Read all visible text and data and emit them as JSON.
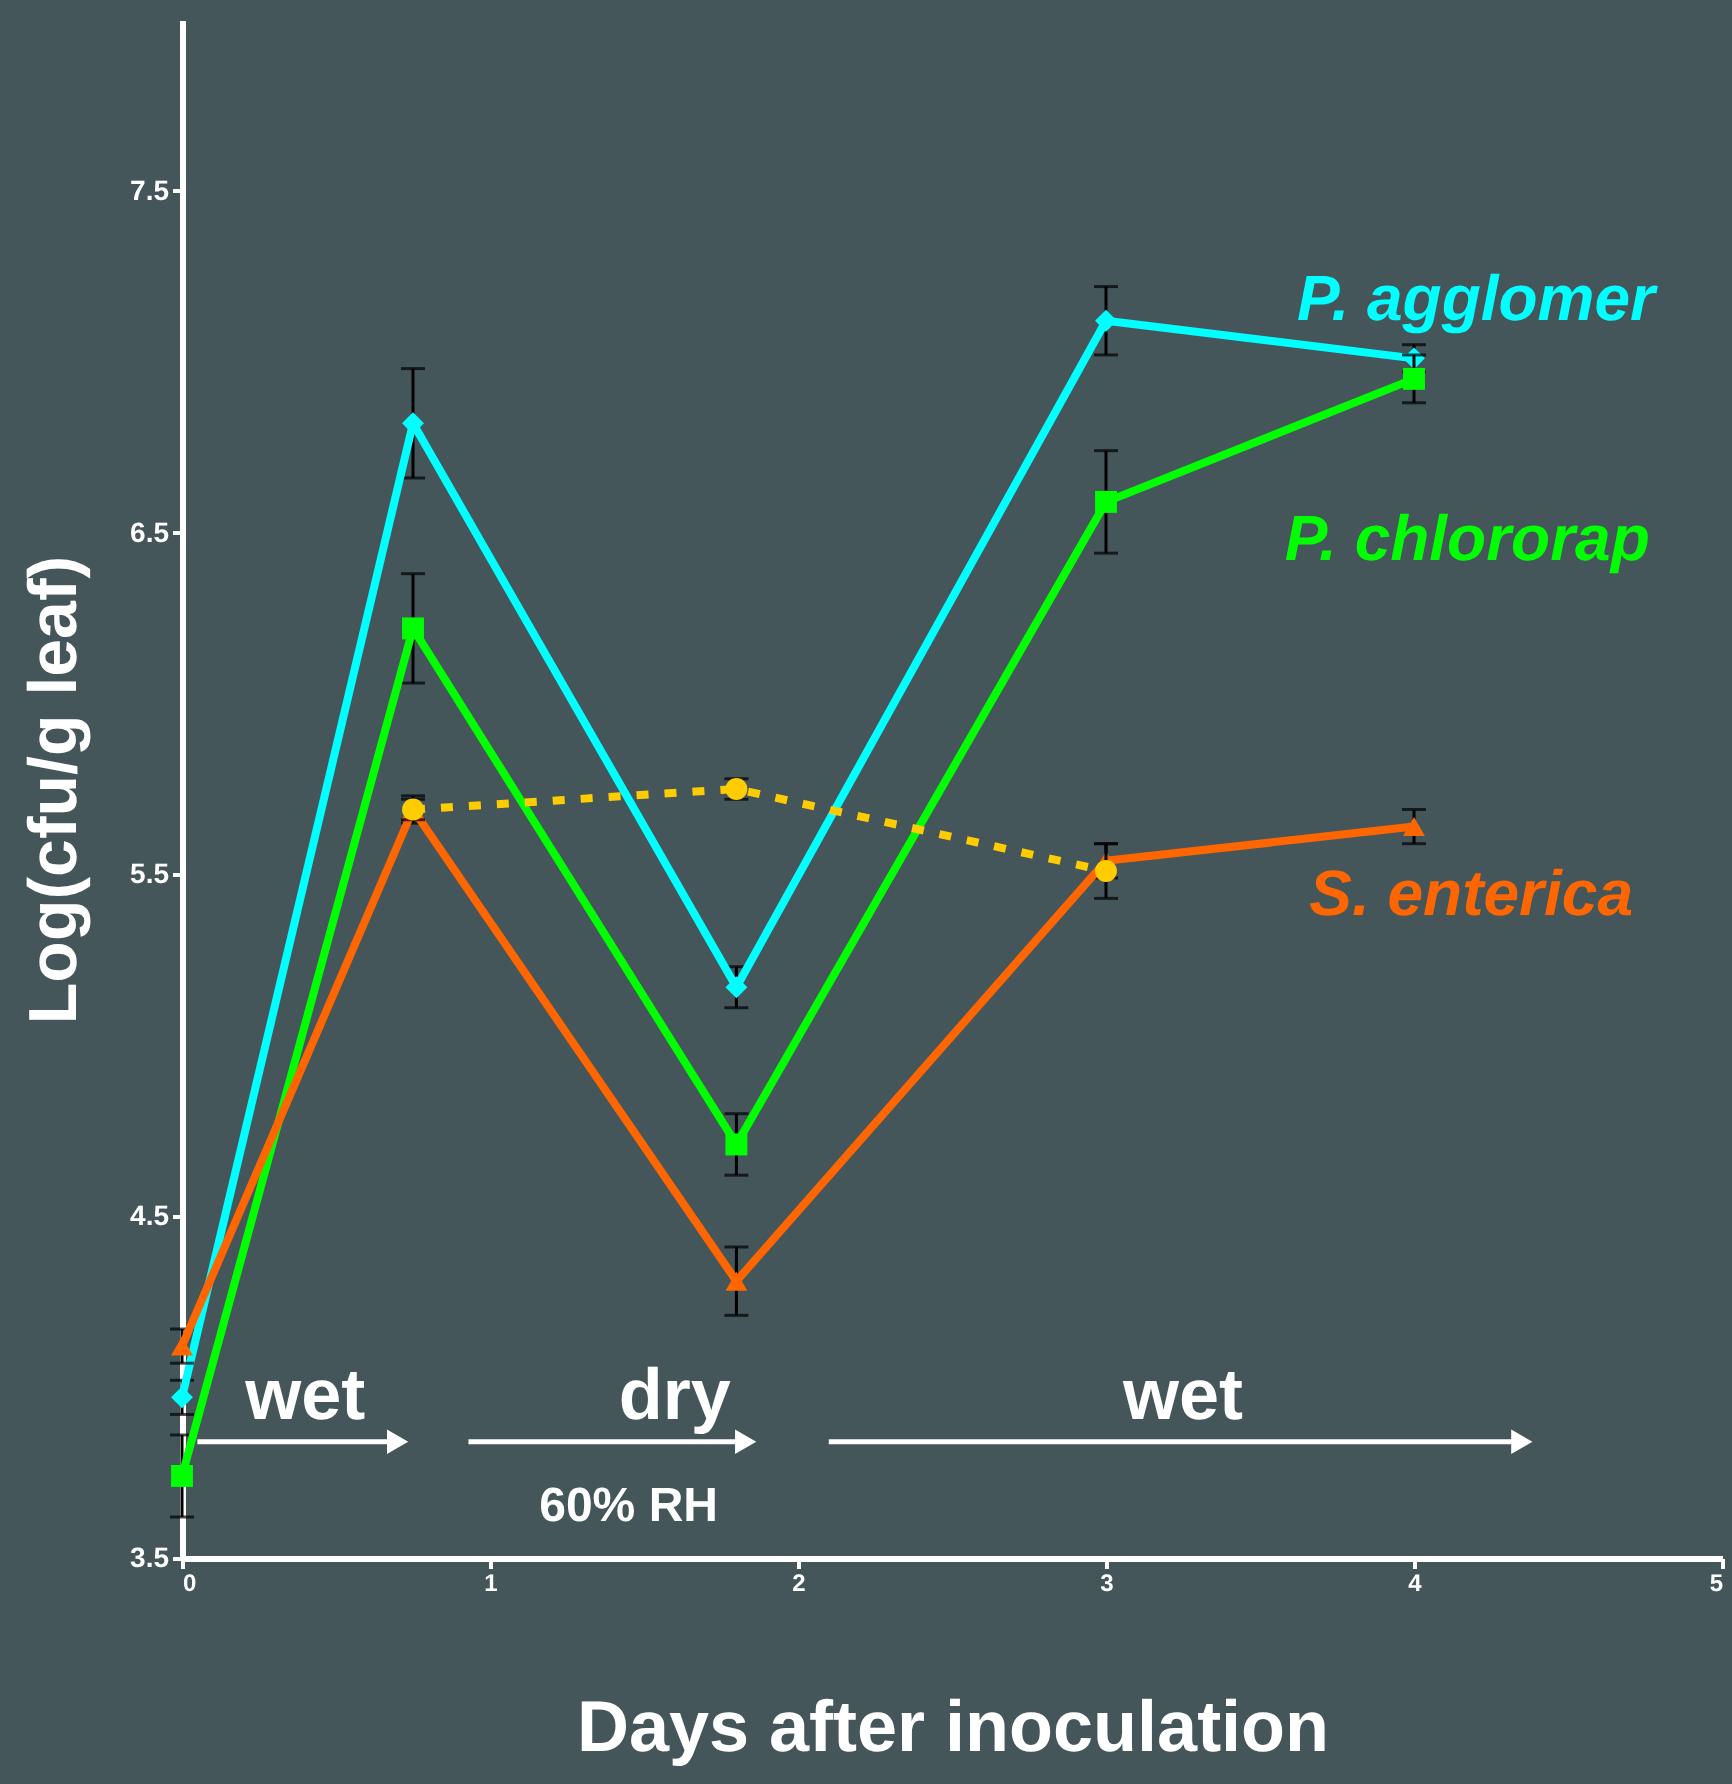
{
  "chart_data": {
    "type": "line",
    "xlabel": "Days after inoculation",
    "ylabel": "Log(cfu/g leaf)",
    "xlim": [
      0,
      5
    ],
    "ylim": [
      3.5,
      8.0
    ],
    "xticks": [
      0,
      1,
      2,
      3,
      4,
      5
    ],
    "yticks": [
      3.5,
      4.5,
      5.5,
      6.5,
      7.5
    ],
    "grid": false,
    "line_style": "solid",
    "series": [
      {
        "name": "P. agglomer",
        "color": "#00ffff",
        "marker": "diamond",
        "x": [
          0,
          0.75,
          1.8,
          3,
          4
        ],
        "values": [
          3.97,
          6.82,
          5.17,
          7.12,
          7.01
        ],
        "errors": [
          0.05,
          0.16,
          0.06,
          0.1,
          0.04
        ]
      },
      {
        "name": "P. chlororap",
        "color": "#00ff00",
        "marker": "square",
        "x": [
          0,
          0.75,
          1.8,
          3,
          4
        ],
        "values": [
          3.74,
          6.22,
          4.71,
          6.59,
          6.95
        ],
        "errors": [
          0.12,
          0.16,
          0.09,
          0.15,
          0.07
        ]
      },
      {
        "name": "S. enterica",
        "color": "#ff6600",
        "marker": "triangle",
        "x": [
          0,
          0.75,
          1.8,
          3,
          4
        ],
        "values": [
          4.12,
          5.69,
          4.31,
          5.54,
          5.64
        ],
        "errors": [
          0.05,
          0.04,
          0.1,
          0.05,
          0.05
        ]
      },
      {
        "color": "#ffcc00",
        "marker": "circle",
        "line_style": "dotted",
        "x": [
          0.75,
          1.8,
          3
        ],
        "values": [
          5.69,
          5.75,
          5.51
        ],
        "errors": [
          0.03,
          0.03,
          0.08
        ]
      }
    ],
    "annotations": [
      "wet",
      "dry",
      "60% RH",
      "wet"
    ]
  }
}
